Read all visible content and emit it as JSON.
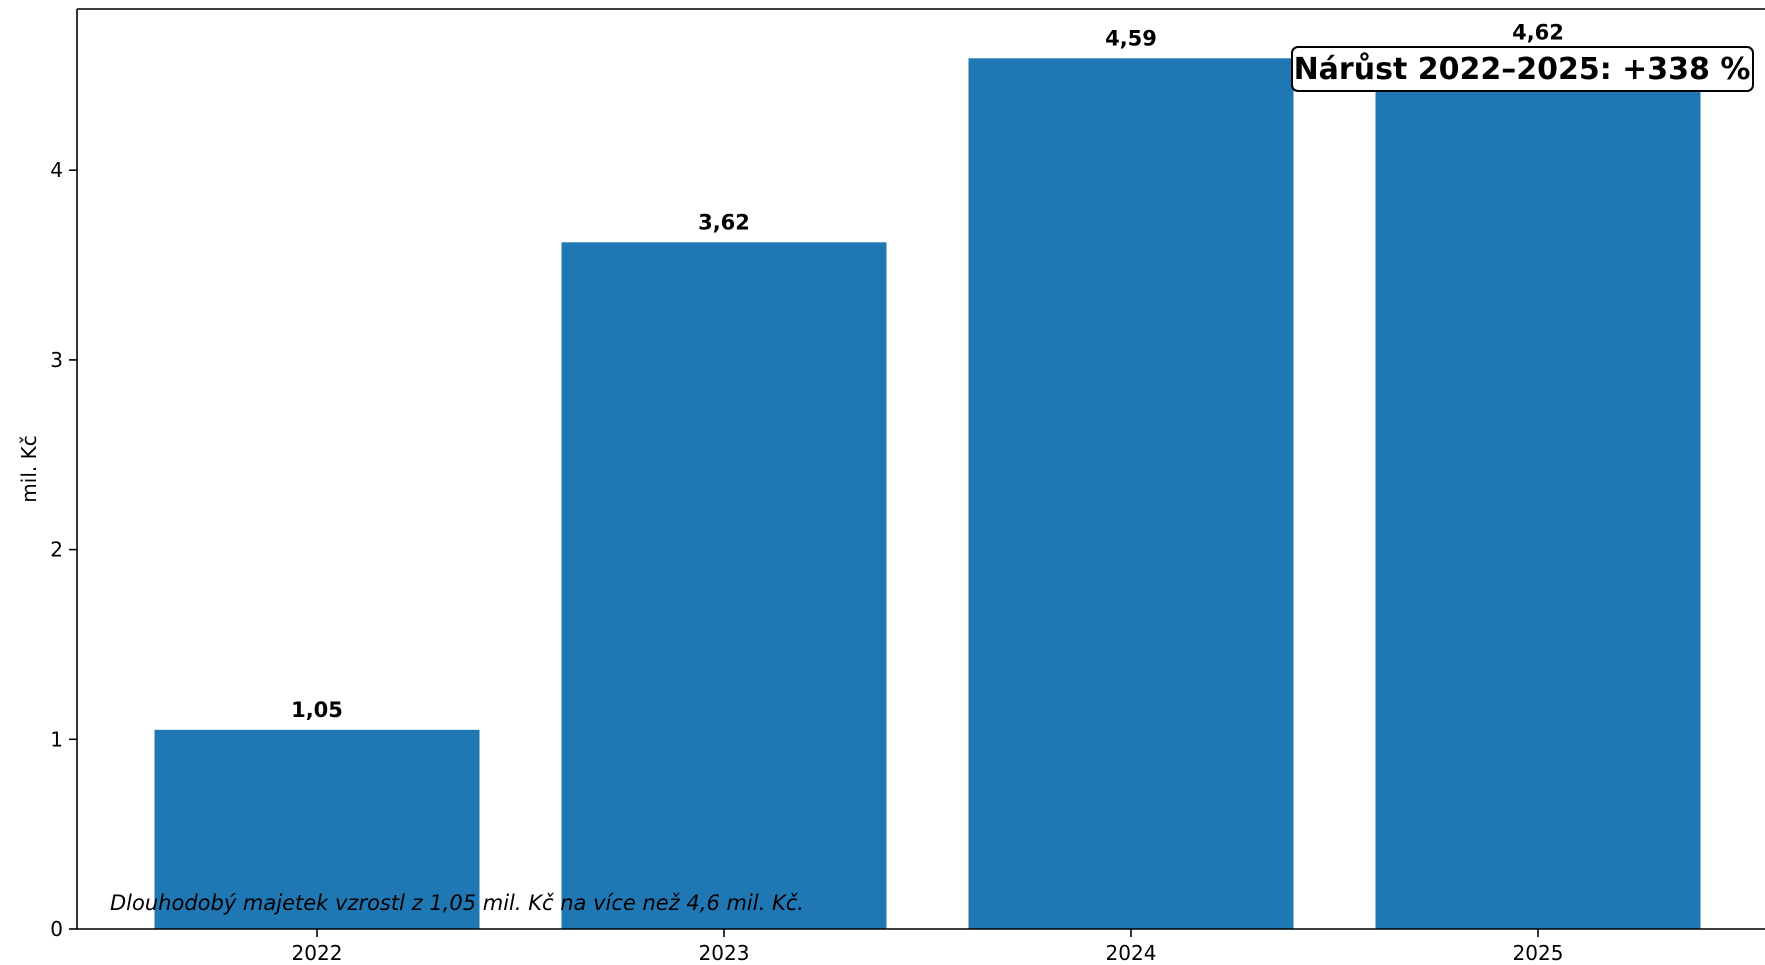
{
  "chart_data": {
    "type": "bar",
    "categories": [
      "2022",
      "2023",
      "2024",
      "2025"
    ],
    "values": [
      1.05,
      3.62,
      4.59,
      4.62
    ],
    "value_labels": [
      "1,05",
      "3,62",
      "4,59",
      "4,62"
    ],
    "title": "",
    "xlabel": "",
    "ylabel": "mil. Kč",
    "ylim": [
      0,
      4.85
    ],
    "yticks": [
      0,
      1,
      2,
      3,
      4
    ],
    "grid": false,
    "bar_color": "#1f77b4",
    "annotation": "Nárůst 2022–2025: +338 %",
    "note": "Dlouhodobý majetek vzrostl z 1,05 mil. Kč na více než 4,6 mil. Kč."
  }
}
